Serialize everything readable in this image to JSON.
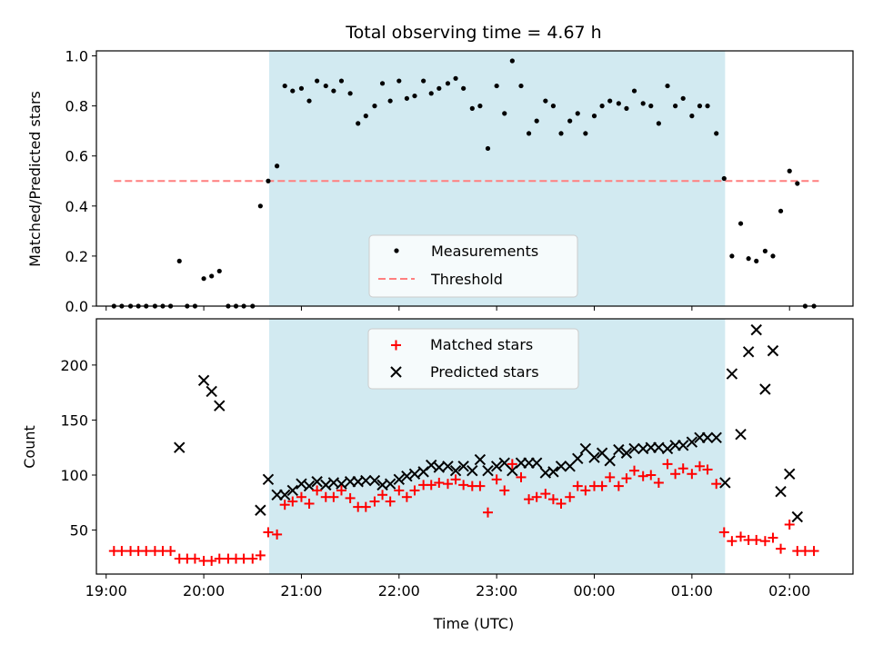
{
  "title": "Total observing time = 4.67 h",
  "colors": {
    "band": "#add8e6",
    "threshold": "#ff7f7f",
    "matched": "#ff0000",
    "predicted": "#000000",
    "measurement": "#000000"
  },
  "chart_data": [
    {
      "type": "scatter",
      "ylabel": "Matched/Predicted stars",
      "xlim": [
        18.9,
        26.65
      ],
      "ylim": [
        0,
        1.02
      ],
      "yticks": [
        0.0,
        0.2,
        0.4,
        0.6,
        0.8,
        1.0
      ],
      "ytick_labels": [
        "0.0",
        "0.2",
        "0.4",
        "0.6",
        "0.8",
        "1.0"
      ],
      "shaded_interval": [
        20.67,
        25.34
      ],
      "legend": {
        "placement": "lower center",
        "entries": [
          "Measurements",
          "Threshold"
        ]
      },
      "threshold": {
        "name": "Threshold",
        "y": 0.5,
        "x_range": [
          19.08,
          26.3
        ],
        "style": "dashed"
      },
      "series": [
        {
          "name": "Measurements",
          "marker": "dot",
          "x": [
            19.08,
            19.16,
            19.25,
            19.33,
            19.41,
            19.5,
            19.58,
            19.66,
            19.75,
            19.83,
            19.91,
            20.0,
            20.08,
            20.16,
            20.25,
            20.33,
            20.41,
            20.5,
            20.58,
            20.66,
            20.75,
            20.83,
            20.91,
            21.0,
            21.08,
            21.16,
            21.25,
            21.33,
            21.41,
            21.5,
            21.58,
            21.66,
            21.75,
            21.83,
            21.91,
            22.0,
            22.08,
            22.16,
            22.25,
            22.33,
            22.41,
            22.5,
            22.58,
            22.66,
            22.75,
            22.83,
            22.91,
            23.0,
            23.08,
            23.16,
            23.25,
            23.33,
            23.41,
            23.5,
            23.58,
            23.66,
            23.75,
            23.83,
            23.91,
            24.0,
            24.08,
            24.16,
            24.25,
            24.33,
            24.41,
            24.5,
            24.58,
            24.66,
            24.75,
            24.83,
            24.91,
            25.0,
            25.08,
            25.16,
            25.25,
            25.33,
            25.41,
            25.5,
            25.58,
            25.66,
            25.75,
            25.83,
            25.91,
            26.0,
            26.08,
            26.16,
            26.25
          ],
          "y": [
            0.0,
            0.0,
            0.0,
            0.0,
            0.0,
            0.0,
            0.0,
            0.0,
            0.18,
            0.0,
            0.0,
            0.11,
            0.12,
            0.14,
            0.0,
            0.0,
            0.0,
            0.0,
            0.4,
            0.5,
            0.56,
            0.88,
            0.86,
            0.87,
            0.82,
            0.9,
            0.88,
            0.86,
            0.9,
            0.85,
            0.73,
            0.76,
            0.8,
            0.89,
            0.82,
            0.9,
            0.83,
            0.84,
            0.9,
            0.85,
            0.87,
            0.89,
            0.91,
            0.87,
            0.79,
            0.8,
            0.63,
            0.88,
            0.77,
            0.98,
            0.88,
            0.69,
            0.74,
            0.82,
            0.8,
            0.69,
            0.74,
            0.77,
            0.69,
            0.76,
            0.8,
            0.82,
            0.81,
            0.79,
            0.86,
            0.81,
            0.8,
            0.73,
            0.88,
            0.8,
            0.83,
            0.76,
            0.8,
            0.8,
            0.69,
            0.51,
            0.2,
            0.33,
            0.19,
            0.18,
            0.22,
            0.2,
            0.38,
            0.54,
            0.49,
            0.0,
            0.0
          ]
        }
      ]
    },
    {
      "type": "scatter",
      "xlabel": "Time (UTC)",
      "ylabel": "Count",
      "xlim": [
        18.9,
        26.65
      ],
      "ylim": [
        10,
        242
      ],
      "yticks": [
        50,
        100,
        150,
        200
      ],
      "ytick_labels": [
        "50",
        "100",
        "150",
        "200"
      ],
      "xticks": [
        19,
        20,
        21,
        22,
        23,
        24,
        25,
        26
      ],
      "xtick_labels": [
        "19:00",
        "20:00",
        "21:00",
        "22:00",
        "23:00",
        "00:00",
        "01:00",
        "02:00"
      ],
      "shaded_interval": [
        20.67,
        25.34
      ],
      "legend": {
        "placement": "upper center",
        "entries": [
          "Matched stars",
          "Predicted stars"
        ]
      },
      "series": [
        {
          "name": "Matched stars",
          "marker": "plus",
          "x": [
            19.08,
            19.16,
            19.25,
            19.33,
            19.41,
            19.5,
            19.58,
            19.66,
            19.75,
            19.83,
            19.91,
            20.0,
            20.08,
            20.16,
            20.25,
            20.33,
            20.41,
            20.5,
            20.58,
            20.66,
            20.75,
            20.83,
            20.91,
            21.0,
            21.08,
            21.16,
            21.25,
            21.33,
            21.41,
            21.5,
            21.58,
            21.66,
            21.75,
            21.83,
            21.91,
            22.0,
            22.08,
            22.16,
            22.25,
            22.33,
            22.41,
            22.5,
            22.58,
            22.66,
            22.75,
            22.83,
            22.91,
            23.0,
            23.08,
            23.16,
            23.25,
            23.33,
            23.41,
            23.5,
            23.58,
            23.66,
            23.75,
            23.83,
            23.91,
            24.0,
            24.08,
            24.16,
            24.25,
            24.33,
            24.41,
            24.5,
            24.58,
            24.66,
            24.75,
            24.83,
            24.91,
            25.0,
            25.08,
            25.16,
            25.25,
            25.33,
            25.41,
            25.5,
            25.58,
            25.66,
            25.75,
            25.83,
            25.91,
            26.0,
            26.08,
            26.16,
            26.25
          ],
          "y": [
            31,
            31,
            31,
            31,
            31,
            31,
            31,
            31,
            24,
            24,
            24,
            22,
            22,
            24,
            24,
            24,
            24,
            24,
            27,
            48,
            46,
            73,
            76,
            80,
            74,
            86,
            80,
            80,
            86,
            79,
            71,
            71,
            76,
            82,
            76,
            86,
            80,
            86,
            91,
            91,
            93,
            92,
            96,
            91,
            90,
            90,
            66,
            96,
            86,
            110,
            98,
            78,
            80,
            83,
            78,
            74,
            80,
            90,
            86,
            90,
            90,
            98,
            90,
            97,
            104,
            99,
            100,
            93,
            110,
            101,
            106,
            101,
            108,
            105,
            92,
            48,
            40,
            44,
            41,
            41,
            40,
            43,
            33,
            55,
            31,
            31,
            31
          ]
        },
        {
          "name": "Predicted stars",
          "marker": "x",
          "x": [
            19.75,
            20.0,
            20.08,
            20.16,
            20.58,
            20.66,
            20.75,
            20.83,
            20.91,
            21.0,
            21.08,
            21.16,
            21.25,
            21.33,
            21.41,
            21.5,
            21.58,
            21.66,
            21.75,
            21.83,
            21.91,
            22.0,
            22.08,
            22.16,
            22.25,
            22.33,
            22.41,
            22.5,
            22.58,
            22.66,
            22.75,
            22.83,
            22.91,
            23.0,
            23.08,
            23.16,
            23.25,
            23.33,
            23.41,
            23.5,
            23.58,
            23.66,
            23.75,
            23.83,
            23.91,
            24.0,
            24.08,
            24.16,
            24.25,
            24.33,
            24.41,
            24.5,
            24.58,
            24.66,
            24.75,
            24.83,
            24.91,
            25.0,
            25.08,
            25.16,
            25.25,
            25.34,
            25.41,
            25.5,
            25.58,
            25.66,
            25.75,
            25.83,
            25.91,
            26.0,
            26.08
          ],
          "y": [
            125,
            186,
            176,
            163,
            68,
            96,
            82,
            82,
            86,
            92,
            90,
            94,
            91,
            93,
            92,
            94,
            94,
            95,
            95,
            91,
            92,
            96,
            99,
            101,
            103,
            109,
            107,
            108,
            104,
            108,
            104,
            114,
            104,
            108,
            111,
            104,
            111,
            111,
            111,
            102,
            103,
            108,
            108,
            115,
            124,
            116,
            120,
            113,
            123,
            120,
            124,
            124,
            125,
            125,
            124,
            127,
            127,
            130,
            134,
            134,
            134,
            93,
            192,
            137,
            212,
            232,
            178,
            213,
            85,
            101,
            62
          ]
        }
      ]
    }
  ]
}
